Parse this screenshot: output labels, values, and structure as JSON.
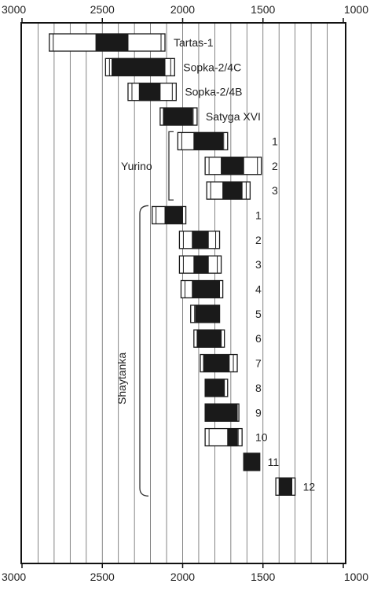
{
  "chart_data": {
    "type": "range",
    "x_direction": "reversed",
    "xlim": [
      3000,
      1000
    ],
    "x_ticks": [
      3000,
      2500,
      2000,
      1500,
      1000
    ],
    "x_tick_labels": [
      "3000",
      "2500",
      "2000",
      "1500",
      "1000"
    ],
    "grid": true,
    "grid_step": 100,
    "style": {
      "frame_color": "#111111",
      "grid_color": "#666666",
      "range_fill": "#ffffff",
      "core_fill": "#1a1a1a",
      "bracket_color": "#333333",
      "tick_color": "#111111"
    },
    "groups": [
      {
        "label": "Yurino",
        "first_row": 4,
        "last_row": 6
      },
      {
        "label": "Shaytanka",
        "first_row": 7,
        "last_row": 18
      }
    ],
    "rows": [
      {
        "site": "Tartas-1",
        "number": "",
        "outer": [
          2830,
          2110
        ],
        "core": [
          2540,
          2340
        ]
      },
      {
        "site": "Sopka-2/4C",
        "number": "",
        "outer": [
          2480,
          2050
        ],
        "core": [
          2440,
          2110
        ]
      },
      {
        "site": "Sopka-2/4B",
        "number": "",
        "outer": [
          2340,
          2040
        ],
        "core": [
          2270,
          2140
        ]
      },
      {
        "site": "Satyga XVI",
        "number": "",
        "outer": [
          2140,
          1910
        ],
        "core": [
          2120,
          1940
        ]
      },
      {
        "site": "",
        "number": "1",
        "outer": [
          2030,
          1720
        ],
        "core": [
          1930,
          1750
        ]
      },
      {
        "site": "",
        "number": "2",
        "outer": [
          1860,
          1510
        ],
        "core": [
          1760,
          1620
        ]
      },
      {
        "site": "",
        "number": "3",
        "outer": [
          1850,
          1580
        ],
        "core": [
          1750,
          1630
        ]
      },
      {
        "site": "",
        "number": "1",
        "outer": [
          2190,
          1980
        ],
        "core": [
          2110,
          2000
        ]
      },
      {
        "site": "",
        "number": "2",
        "outer": [
          2020,
          1770
        ],
        "core": [
          1940,
          1840
        ]
      },
      {
        "site": "",
        "number": "3",
        "outer": [
          2020,
          1760
        ],
        "core": [
          1930,
          1840
        ]
      },
      {
        "site": "",
        "number": "4",
        "outer": [
          2010,
          1750
        ],
        "core": [
          1940,
          1770
        ]
      },
      {
        "site": "",
        "number": "5",
        "outer": [
          1950,
          1770
        ],
        "core": [
          1920,
          1770
        ]
      },
      {
        "site": "",
        "number": "6",
        "outer": [
          1930,
          1740
        ],
        "core": [
          1910,
          1760
        ]
      },
      {
        "site": "",
        "number": "7",
        "outer": [
          1890,
          1660
        ],
        "core": [
          1870,
          1710
        ]
      },
      {
        "site": "",
        "number": "8",
        "outer": [
          1860,
          1720
        ],
        "core": [
          1860,
          1740
        ]
      },
      {
        "site": "",
        "number": "9",
        "outer": [
          1860,
          1650
        ],
        "core": [
          1860,
          1660
        ]
      },
      {
        "site": "",
        "number": "10",
        "outer": [
          1860,
          1630
        ],
        "core": [
          1720,
          1660
        ]
      },
      {
        "site": "",
        "number": "11",
        "outer": [
          1620,
          1520
        ],
        "core": [
          1620,
          1520
        ]
      },
      {
        "site": "",
        "number": "12",
        "outer": [
          1420,
          1300
        ],
        "core": [
          1400,
          1320
        ]
      }
    ]
  }
}
